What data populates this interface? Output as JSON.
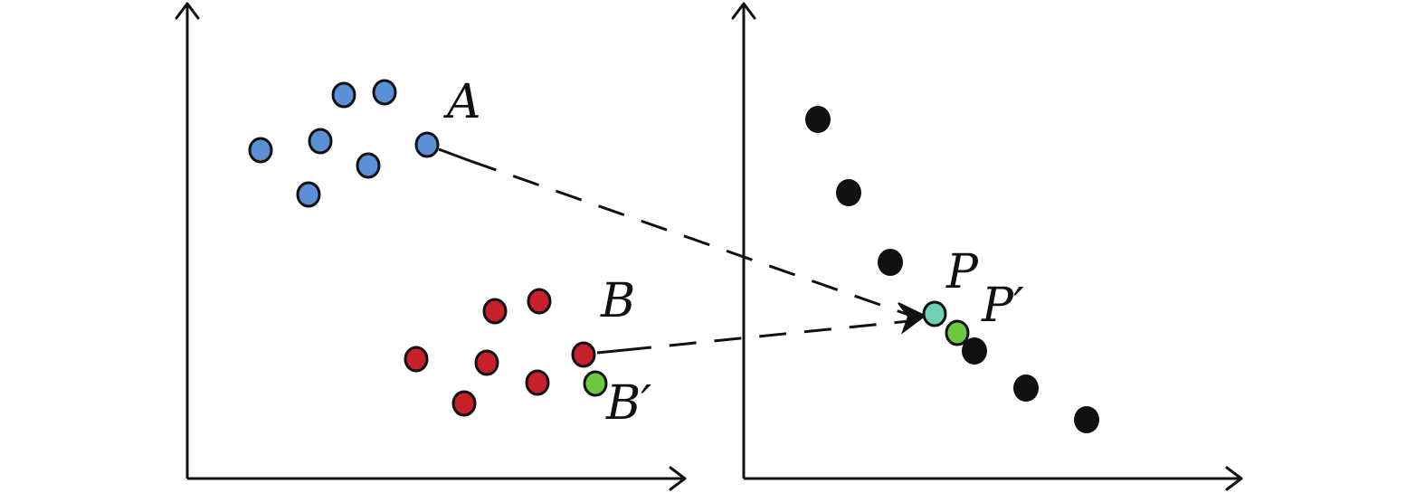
{
  "colors": {
    "cluster_a": "#5b8fd6",
    "cluster_b": "#c8202a",
    "shifted": "#6cc93f",
    "target": "#6fd0b5",
    "black": "#111111"
  },
  "labels": {
    "a": "A",
    "b": "B",
    "b_prime": "B′",
    "p": "P",
    "p_prime": "P′"
  }
}
